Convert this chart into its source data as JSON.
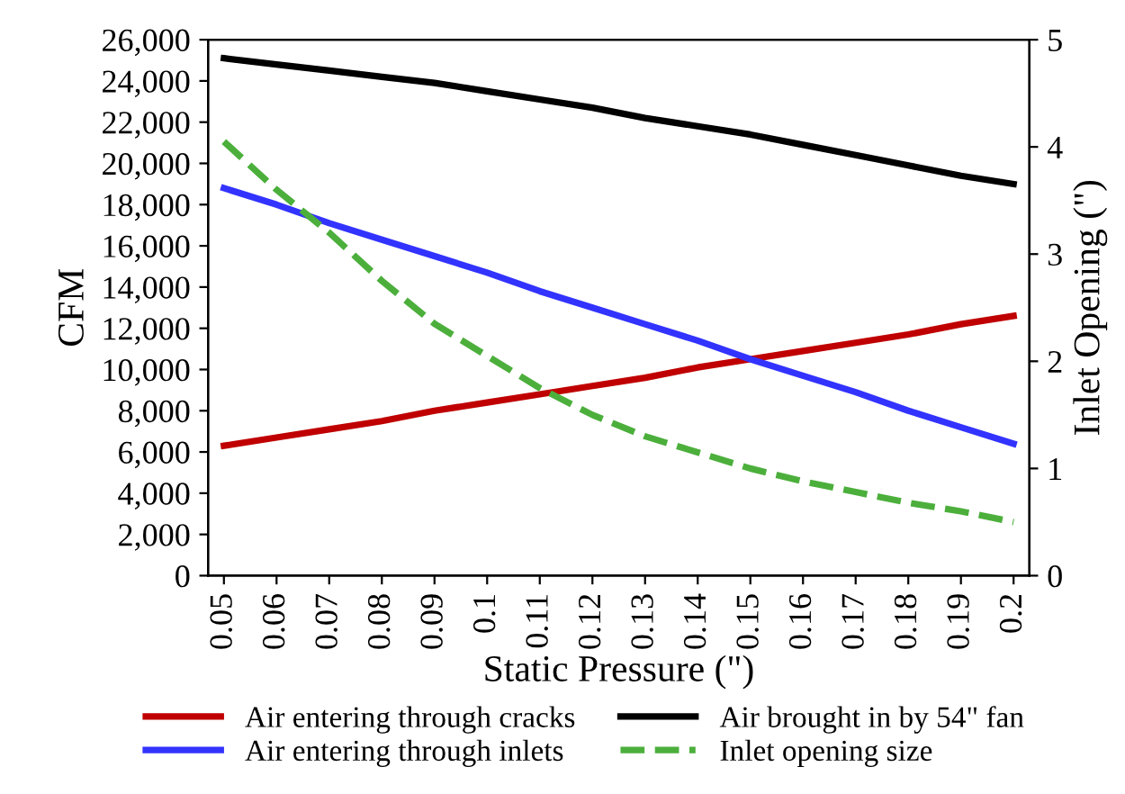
{
  "chart_data": {
    "type": "line",
    "xlabel": "Static Pressure (\")",
    "ylabel": "CFM",
    "y2label": "Inlet Opening (\")",
    "categories": [
      "0.05",
      "0.06",
      "0.07",
      "0.08",
      "0.09",
      "0.1",
      "0.11",
      "0.12",
      "0.13",
      "0.14",
      "0.15",
      "0.16",
      "0.17",
      "0.18",
      "0.19",
      "0.2"
    ],
    "series": [
      {
        "name": "Air entering through cracks",
        "color": "#c00000",
        "values": [
          6300,
          6700,
          7100,
          7500,
          8000,
          8400,
          8800,
          9200,
          9600,
          10100,
          10500,
          10900,
          11300,
          11700,
          12200,
          12600
        ]
      },
      {
        "name": "Air brought in by 54\" fan",
        "color": "#000000",
        "values": [
          25100,
          24800,
          24500,
          24200,
          23900,
          23500,
          23100,
          22700,
          22200,
          21800,
          21400,
          20900,
          20400,
          19900,
          19400,
          19000
        ]
      },
      {
        "name": "Air entering through inlets",
        "color": "#3333ff",
        "values": [
          18800,
          18000,
          17100,
          16300,
          15500,
          14700,
          13800,
          13000,
          12200,
          11400,
          10500,
          9700,
          8900,
          8000,
          7200,
          6400
        ]
      },
      {
        "name": "Inlet opening size",
        "color": "#4caf3c",
        "axis": "y2",
        "line_style": "dashed",
        "values": [
          4.05,
          3.6,
          3.2,
          2.75,
          2.35,
          2.05,
          1.75,
          1.5,
          1.3,
          1.15,
          1.0,
          0.88,
          0.78,
          0.68,
          0.6,
          0.5
        ]
      }
    ],
    "ylim": [
      0,
      26000
    ],
    "yticks": [
      {
        "value": 0,
        "label": "0"
      },
      {
        "value": 2000,
        "label": "2,000"
      },
      {
        "value": 4000,
        "label": "4,000"
      },
      {
        "value": 6000,
        "label": "6,000"
      },
      {
        "value": 8000,
        "label": "8,000"
      },
      {
        "value": 10000,
        "label": "10,000"
      },
      {
        "value": 12000,
        "label": "12,000"
      },
      {
        "value": 14000,
        "label": "14,000"
      },
      {
        "value": 16000,
        "label": "16,000"
      },
      {
        "value": 18000,
        "label": "18,000"
      },
      {
        "value": 20000,
        "label": "20,000"
      },
      {
        "value": 22000,
        "label": "22,000"
      },
      {
        "value": 24000,
        "label": "24,000"
      },
      {
        "value": 26000,
        "label": "26,000"
      }
    ],
    "y2lim": [
      0,
      5
    ],
    "y2ticks": [
      0,
      1,
      2,
      3,
      4,
      5
    ],
    "grid": false,
    "legend": "bottom",
    "marker": "none"
  }
}
